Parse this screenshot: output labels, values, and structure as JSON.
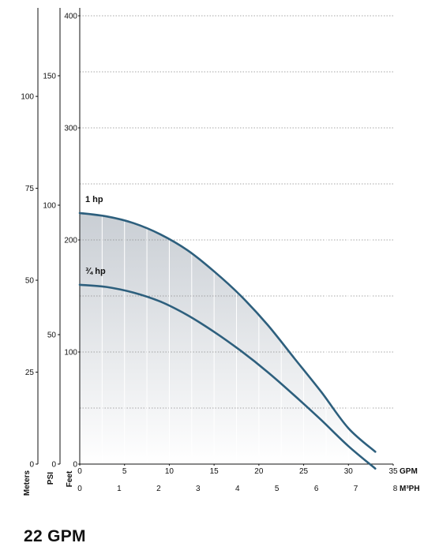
{
  "chart_data": {
    "type": "line",
    "title": "22 GPM",
    "axes": {
      "meters": {
        "label": "Meters",
        "ticks": [
          0,
          25,
          50,
          75,
          100
        ]
      },
      "psi": {
        "label": "PSI",
        "ticks": [
          0,
          50,
          100,
          150
        ]
      },
      "feet": {
        "label": "Feet",
        "ticks": [
          0,
          100,
          200,
          300,
          400
        ]
      },
      "gpm": {
        "label": "GPM",
        "ticks": [
          0,
          5,
          10,
          15,
          20,
          25,
          30,
          35
        ]
      },
      "m3ph": {
        "label": "M³PH",
        "ticks": [
          0,
          1,
          2,
          3,
          4,
          5,
          6,
          7,
          8
        ]
      }
    },
    "xlim": [
      0,
      35
    ],
    "ylim": [
      0,
      400
    ],
    "grid": true,
    "series": [
      {
        "name": "1 hp",
        "x": [
          0,
          3,
          6,
          9,
          12,
          15,
          18,
          21,
          24,
          27,
          30,
          33
        ],
        "y": [
          224,
          221,
          215,
          205,
          191,
          172,
          150,
          124,
          94,
          64,
          32,
          11
        ]
      },
      {
        "name": "¾ hp",
        "x": [
          0,
          3,
          6,
          9,
          12,
          15,
          18,
          21,
          24,
          27,
          30,
          33
        ],
        "y": [
          160,
          158,
          153,
          145,
          133,
          118,
          101,
          82,
          61,
          39,
          16,
          -4
        ]
      }
    ]
  }
}
